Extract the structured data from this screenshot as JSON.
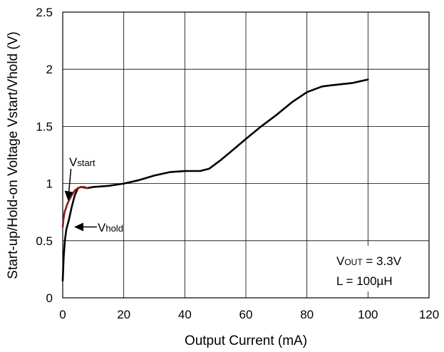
{
  "chart_data": {
    "type": "line",
    "title": "",
    "xlabel": "Output Current (mA)",
    "ylabel": "Start-up/Hold-on Voltage Vstart/Vhold (V)",
    "xlim": [
      0,
      120
    ],
    "ylim": [
      0,
      2.5
    ],
    "xticks": [
      0,
      20,
      40,
      60,
      80,
      100,
      120
    ],
    "yticks": [
      0,
      0.5,
      1,
      1.5,
      2,
      2.5
    ],
    "ytick_labels": [
      "0",
      "0.5",
      "1",
      "1.5",
      "2",
      "2.5"
    ],
    "grid": true,
    "series": [
      {
        "name": "Vhold",
        "color": "#000000",
        "x": [
          0,
          0.3,
          0.7,
          1.2,
          2,
          3,
          4,
          5,
          6,
          8,
          10,
          15,
          20,
          25,
          30,
          35,
          40,
          45,
          48,
          52,
          56,
          60,
          65,
          70,
          75,
          80,
          85,
          88,
          95,
          100
        ],
        "y": [
          0.15,
          0.35,
          0.5,
          0.6,
          0.68,
          0.8,
          0.9,
          0.96,
          0.97,
          0.96,
          0.97,
          0.98,
          1.0,
          1.03,
          1.07,
          1.1,
          1.11,
          1.11,
          1.13,
          1.21,
          1.3,
          1.39,
          1.5,
          1.6,
          1.71,
          1.8,
          1.85,
          1.86,
          1.88,
          1.91
        ]
      },
      {
        "name": "Vstart",
        "color": "#8b1a1a",
        "x": [
          0,
          0.3,
          0.6,
          1,
          1.5,
          2,
          3,
          4,
          5,
          6,
          7,
          8
        ],
        "y": [
          0.62,
          0.7,
          0.75,
          0.78,
          0.82,
          0.85,
          0.9,
          0.94,
          0.96,
          0.97,
          0.97,
          0.96
        ]
      }
    ],
    "annotations": {
      "vstart": {
        "label_main": "V",
        "label_sub": "start",
        "arrow_x": 2,
        "arrow_y": 0.85
      },
      "vhold": {
        "label_main": "V",
        "label_sub": "hold",
        "arrow_x": 3.5,
        "arrow_y": 0.62
      }
    },
    "info_box": {
      "line1_prefix": "V",
      "line1_sub": "OUT",
      "line1_suffix": " = 3.3V",
      "line2": "L = 100µH"
    }
  }
}
